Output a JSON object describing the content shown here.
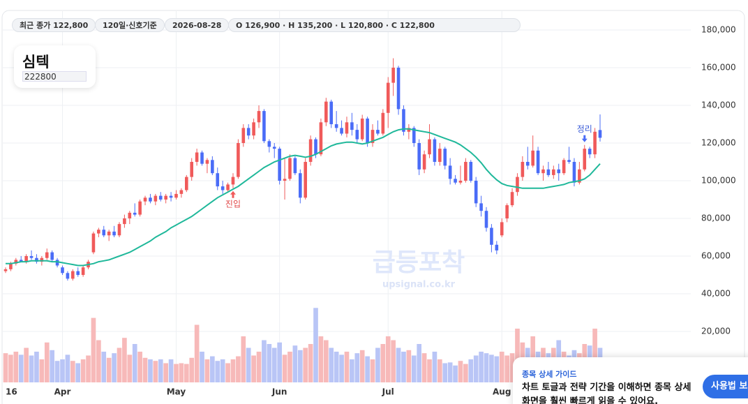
{
  "chips": [
    "최근 종가 122,800",
    "120일·신호기준",
    "2026-08-28",
    "O 126,900 · H 135,200 · L 120,800 · C 122,800"
  ],
  "stock": {
    "name": "심텍",
    "code": "222800"
  },
  "watermark": {
    "title": "급등포착",
    "url": "upsignal.co.kr"
  },
  "guide": {
    "heading": "종목 상세 가이드",
    "body": [
      "차트 토글과 전략 기간을 이해하면 종목 상세",
      "화면을 훨씬 빠르게 읽을 수 있어요."
    ],
    "button": "사용법 보기"
  },
  "chart_data": {
    "type": "candlestick",
    "up_color": "#f05a5a",
    "down_color": "#4a6cf7",
    "up_volume_color": "#f7b9b9",
    "down_volume_color": "#b9c5f6",
    "ma_color": "#1fb89a",
    "ylim": [
      0,
      190000
    ],
    "yticks": [
      {
        "value": 20000,
        "label": "20,000"
      },
      {
        "value": 40000,
        "label": "40,000"
      },
      {
        "value": 60000,
        "label": "60,000"
      },
      {
        "value": 80000,
        "label": "80,000"
      },
      {
        "value": 100000,
        "label": "100,000"
      },
      {
        "value": 120000,
        "label": "120,000"
      },
      {
        "value": 140000,
        "label": "140,000"
      },
      {
        "value": 160000,
        "label": "160,000"
      },
      {
        "value": 180000,
        "label": "180,000"
      }
    ],
    "grid": true,
    "vlim": [
      0,
      100
    ],
    "categories": [
      "16",
      null,
      null,
      null,
      null,
      null,
      null,
      null,
      null,
      null,
      null,
      "Apr",
      null,
      null,
      null,
      null,
      null,
      null,
      null,
      null,
      null,
      null,
      null,
      null,
      null,
      null,
      null,
      null,
      null,
      null,
      null,
      null,
      null,
      "May",
      null,
      null,
      null,
      null,
      null,
      null,
      null,
      null,
      null,
      null,
      null,
      null,
      null,
      null,
      null,
      null,
      null,
      null,
      null,
      "Jun",
      null,
      null,
      null,
      null,
      null,
      null,
      null,
      null,
      null,
      null,
      null,
      null,
      null,
      null,
      null,
      null,
      null,
      null,
      null,
      null,
      "Jul",
      null,
      null,
      null,
      null,
      null,
      null,
      null,
      null,
      null,
      null,
      null,
      null,
      null,
      null,
      null,
      null,
      null,
      null,
      null,
      null,
      null,
      "Aug",
      null,
      null,
      null,
      null,
      null,
      null,
      null,
      null,
      null,
      null,
      null,
      null,
      null,
      null,
      null,
      null,
      null,
      null,
      null
    ],
    "candles": [
      [
        52000,
        54000,
        51000,
        53000
      ],
      [
        53000,
        57000,
        52000,
        56000
      ],
      [
        56000,
        59000,
        55000,
        58000
      ],
      [
        58000,
        60000,
        57000,
        57000
      ],
      [
        57000,
        61000,
        56000,
        60000
      ],
      [
        60000,
        63000,
        58000,
        59000
      ],
      [
        59000,
        61000,
        56000,
        57000
      ],
      [
        57000,
        60000,
        55000,
        59000
      ],
      [
        59000,
        64000,
        58000,
        62000
      ],
      [
        62000,
        63000,
        57000,
        58000
      ],
      [
        58000,
        59000,
        54000,
        55000
      ],
      [
        54000,
        55000,
        50000,
        51000
      ],
      [
        51000,
        52000,
        47000,
        48000
      ],
      [
        48000,
        53000,
        47000,
        52000
      ],
      [
        52000,
        54000,
        49000,
        50000
      ],
      [
        50000,
        55000,
        49000,
        54000
      ],
      [
        54000,
        58000,
        53000,
        57000
      ],
      [
        62000,
        73000,
        61000,
        72000
      ],
      [
        72000,
        75000,
        70000,
        74000
      ],
      [
        74000,
        76000,
        70000,
        71000
      ],
      [
        71000,
        74000,
        68000,
        73000
      ],
      [
        73000,
        76000,
        70000,
        71000
      ],
      [
        71000,
        78000,
        70000,
        77000
      ],
      [
        77000,
        82000,
        75000,
        80000
      ],
      [
        80000,
        84000,
        77000,
        83000
      ],
      [
        83000,
        88000,
        81000,
        82000
      ],
      [
        82000,
        90000,
        81000,
        89000
      ],
      [
        89000,
        92000,
        87000,
        91000
      ],
      [
        91000,
        93000,
        88000,
        89000
      ],
      [
        89000,
        93000,
        87000,
        92000
      ],
      [
        92000,
        94000,
        89000,
        90000
      ],
      [
        90000,
        93000,
        88000,
        92000
      ],
      [
        92000,
        94000,
        89000,
        91000
      ],
      [
        91000,
        95000,
        90000,
        93000
      ],
      [
        93000,
        96000,
        91000,
        95000
      ],
      [
        95000,
        103000,
        94000,
        102000
      ],
      [
        102000,
        112000,
        100000,
        110000
      ],
      [
        110000,
        117000,
        108000,
        115000
      ],
      [
        115000,
        116000,
        108000,
        109000
      ],
      [
        109000,
        112000,
        104000,
        111000
      ],
      [
        111000,
        113000,
        103000,
        104000
      ],
      [
        104000,
        107000,
        95000,
        97000
      ],
      [
        97000,
        100000,
        93000,
        95000
      ],
      [
        95000,
        99000,
        94000,
        98000
      ],
      [
        98000,
        104000,
        96000,
        102000
      ],
      [
        102000,
        122000,
        101000,
        120000
      ],
      [
        120000,
        130000,
        118000,
        128000
      ],
      [
        128000,
        130000,
        122000,
        124000
      ],
      [
        124000,
        133000,
        122000,
        131000
      ],
      [
        131000,
        140000,
        128000,
        137000
      ],
      [
        137000,
        138000,
        120000,
        121000
      ],
      [
        121000,
        122000,
        115000,
        118000
      ],
      [
        118000,
        120000,
        112000,
        117000
      ],
      [
        117000,
        118000,
        98000,
        100000
      ],
      [
        100000,
        112000,
        90000,
        101000
      ],
      [
        101000,
        114000,
        100000,
        112000
      ],
      [
        112000,
        113000,
        103000,
        104000
      ],
      [
        104000,
        106000,
        88000,
        91000
      ],
      [
        91000,
        112000,
        90000,
        110000
      ],
      [
        110000,
        124000,
        108000,
        122000
      ],
      [
        122000,
        123000,
        112000,
        114000
      ],
      [
        114000,
        133000,
        113000,
        131000
      ],
      [
        131000,
        144000,
        129000,
        142000
      ],
      [
        142000,
        143000,
        128000,
        130000
      ],
      [
        130000,
        137000,
        126000,
        128000
      ],
      [
        128000,
        132000,
        124000,
        125000
      ],
      [
        125000,
        134000,
        123000,
        131000
      ],
      [
        131000,
        136000,
        124000,
        127000
      ],
      [
        127000,
        130000,
        120000,
        122000
      ],
      [
        122000,
        135000,
        121000,
        133000
      ],
      [
        133000,
        134000,
        118000,
        120000
      ],
      [
        120000,
        130000,
        118000,
        127000
      ],
      [
        127000,
        132000,
        124000,
        125000
      ],
      [
        125000,
        138000,
        124000,
        136000
      ],
      [
        136000,
        155000,
        128000,
        152000
      ],
      [
        152000,
        165000,
        145000,
        160000
      ],
      [
        160000,
        161000,
        135000,
        138000
      ],
      [
        138000,
        140000,
        124000,
        126000
      ],
      [
        126000,
        130000,
        122000,
        128000
      ],
      [
        128000,
        129000,
        118000,
        120000
      ],
      [
        120000,
        122000,
        103000,
        106000
      ],
      [
        106000,
        116000,
        104000,
        114000
      ],
      [
        114000,
        130000,
        112000,
        122000
      ],
      [
        122000,
        123000,
        108000,
        110000
      ],
      [
        110000,
        120000,
        108000,
        117000
      ],
      [
        117000,
        118000,
        106000,
        108000
      ],
      [
        108000,
        112000,
        98000,
        101000
      ],
      [
        101000,
        103000,
        98000,
        99000
      ],
      [
        99000,
        108000,
        98000,
        100000
      ],
      [
        100000,
        112000,
        99000,
        110000
      ],
      [
        110000,
        111000,
        99000,
        100000
      ],
      [
        100000,
        102000,
        86000,
        88000
      ],
      [
        88000,
        92000,
        81000,
        84000
      ],
      [
        84000,
        86000,
        73000,
        75000
      ],
      [
        75000,
        77000,
        62000,
        66000
      ],
      [
        66000,
        68000,
        61000,
        63000
      ],
      [
        71000,
        80000,
        70000,
        78000
      ],
      [
        80000,
        88000,
        78000,
        87000
      ],
      [
        87000,
        96000,
        86000,
        94000
      ],
      [
        94000,
        104000,
        92000,
        102000
      ],
      [
        102000,
        113000,
        100000,
        110000
      ],
      [
        110000,
        118000,
        106000,
        108000
      ],
      [
        108000,
        124000,
        107000,
        116000
      ],
      [
        116000,
        118000,
        103000,
        104000
      ],
      [
        104000,
        108000,
        100000,
        106000
      ],
      [
        106000,
        110000,
        102000,
        103000
      ],
      [
        103000,
        108000,
        101000,
        106000
      ],
      [
        106000,
        109000,
        100000,
        104000
      ],
      [
        104000,
        112000,
        103000,
        111000
      ],
      [
        111000,
        118000,
        109000,
        110000
      ],
      [
        110000,
        112000,
        97000,
        99000
      ],
      [
        99000,
        110000,
        98000,
        106000
      ],
      [
        106000,
        119000,
        105000,
        117000
      ],
      [
        117000,
        118000,
        112000,
        114000
      ],
      [
        114000,
        128000,
        112000,
        126000
      ],
      [
        126900,
        135200,
        120800,
        122800
      ]
    ],
    "volume": [
      38,
      36,
      40,
      36,
      45,
      35,
      40,
      30,
      52,
      42,
      28,
      30,
      36,
      28,
      25,
      30,
      35,
      84,
      55,
      40,
      32,
      38,
      45,
      58,
      36,
      50,
      40,
      32,
      30,
      28,
      30,
      25,
      30,
      24,
      25,
      24,
      32,
      75,
      40,
      30,
      34,
      28,
      30,
      25,
      30,
      34,
      60,
      45,
      35,
      40,
      55,
      50,
      45,
      52,
      36,
      40,
      48,
      42,
      45,
      50,
      97,
      60,
      55,
      45,
      40,
      36,
      40,
      30,
      38,
      42,
      34,
      30,
      45,
      50,
      60,
      55,
      45,
      40,
      42,
      35,
      50,
      38,
      30,
      40,
      30,
      25,
      26,
      22,
      28,
      24,
      30,
      35,
      40,
      38,
      36,
      34,
      40,
      35,
      38,
      70,
      52,
      45,
      60,
      40,
      45,
      38,
      45,
      55,
      40,
      35,
      42,
      38,
      50,
      48,
      70,
      45
    ],
    "ma": [
      56000,
      56000,
      56500,
      57000,
      57000,
      57500,
      57500,
      57500,
      57500,
      57000,
      57000,
      56500,
      56000,
      55500,
      55000,
      55000,
      55500,
      56000,
      57000,
      57500,
      58000,
      59000,
      60000,
      61000,
      62000,
      63500,
      65000,
      66500,
      68000,
      70000,
      71500,
      73000,
      75000,
      76500,
      78000,
      79500,
      81000,
      83000,
      85000,
      87000,
      89000,
      91000,
      92500,
      94000,
      95500,
      97000,
      99000,
      101000,
      103000,
      105000,
      107000,
      108500,
      110000,
      111000,
      112000,
      113000,
      113500,
      113000,
      112500,
      113000,
      114000,
      115500,
      117000,
      118500,
      119500,
      120000,
      120500,
      120500,
      120000,
      119500,
      120000,
      121000,
      122000,
      123000,
      124500,
      126000,
      127000,
      127500,
      127500,
      127000,
      126500,
      126000,
      125500,
      124500,
      123500,
      122500,
      121500,
      120500,
      119000,
      117000,
      115000,
      112500,
      109500,
      106000,
      103000,
      100500,
      98500,
      97500,
      97000,
      96500,
      96000,
      96000,
      96000,
      96000,
      96000,
      96500,
      97000,
      97500,
      98000,
      99000,
      99500,
      100000,
      101000,
      103000,
      106000,
      109000
    ],
    "annotations": [
      {
        "text": "진입",
        "index": 44,
        "side": "below"
      },
      {
        "text": "정리",
        "index": 112,
        "side": "above"
      }
    ]
  }
}
